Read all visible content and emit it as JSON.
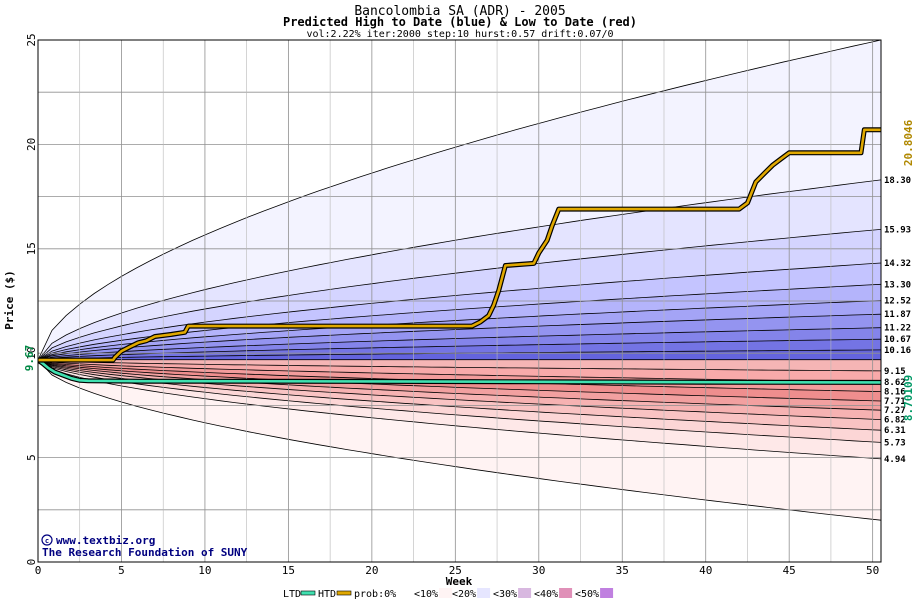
{
  "chart_data": {
    "type": "area",
    "title": "Bancolombia SA (ADR) - 2005",
    "subtitle": "Predicted High to Date (blue) &  Low to Date (red)",
    "params": "vol:2.22% iter:2000 step:10 hurst:0.57 drift:0.07/0",
    "xlabel": "Week",
    "ylabel": "Price ($)",
    "xlim": [
      0,
      50.5
    ],
    "ylim": [
      0,
      25
    ],
    "x_ticks": [
      0,
      5,
      10,
      15,
      20,
      25,
      30,
      35,
      40,
      45,
      50
    ],
    "y_ticks": [
      0,
      5,
      10,
      15,
      20,
      25
    ],
    "grid": true,
    "start_price": 9.67,
    "start_label": "9.67",
    "high_band_ends": [
      25,
      18.3,
      15.93,
      14.32,
      13.3,
      12.52,
      11.87,
      11.22,
      10.67,
      10.16,
      9.67
    ],
    "low_band_ends": [
      9.67,
      9.15,
      8.62,
      8.16,
      7.71,
      7.27,
      6.82,
      6.31,
      5.73,
      4.94,
      2.0
    ],
    "right_labels_high": [
      "18.30",
      "15.93",
      "14.32",
      "13.30",
      "12.52",
      "11.87",
      "11.22",
      "10.67",
      "10.16"
    ],
    "right_labels_low": [
      "9.15",
      "8.62",
      "8.16",
      "7.71",
      "7.27",
      "6.82",
      "6.31",
      "5.73",
      "4.94"
    ],
    "ltd_series": {
      "name": "LTD",
      "color": "#40e0b0",
      "points": [
        [
          0,
          9.67
        ],
        [
          0.3,
          9.5
        ],
        [
          0.6,
          9.3
        ],
        [
          1,
          9.1
        ],
        [
          1.5,
          8.95
        ],
        [
          2,
          8.8
        ],
        [
          2.5,
          8.7
        ],
        [
          3,
          8.68
        ],
        [
          6,
          8.66
        ],
        [
          10,
          8.66
        ],
        [
          20,
          8.65
        ],
        [
          30,
          8.63
        ],
        [
          40,
          8.61
        ],
        [
          50.5,
          8.6
        ]
      ],
      "end_label": "8.70109"
    },
    "htd_series": {
      "name": "HTD",
      "color": "#e0a800",
      "points": [
        [
          0,
          9.67
        ],
        [
          4.5,
          9.67
        ],
        [
          4.6,
          9.8
        ],
        [
          5,
          10.1
        ],
        [
          5.5,
          10.3
        ],
        [
          6,
          10.5
        ],
        [
          6.5,
          10.6
        ],
        [
          7,
          10.8
        ],
        [
          8,
          10.9
        ],
        [
          8.8,
          11.0
        ],
        [
          9,
          11.3
        ],
        [
          15,
          11.3
        ],
        [
          20,
          11.3
        ],
        [
          26,
          11.3
        ],
        [
          26.5,
          11.5
        ],
        [
          27,
          11.8
        ],
        [
          27.3,
          12.3
        ],
        [
          27.6,
          13.0
        ],
        [
          28,
          14.2
        ],
        [
          29.7,
          14.3
        ],
        [
          30,
          14.8
        ],
        [
          30.5,
          15.4
        ],
        [
          30.8,
          16.1
        ],
        [
          31.2,
          16.9
        ],
        [
          35,
          16.9
        ],
        [
          40,
          16.9
        ],
        [
          42,
          16.9
        ],
        [
          42.5,
          17.2
        ],
        [
          43,
          18.2
        ],
        [
          43.5,
          18.6
        ],
        [
          44,
          19.0
        ],
        [
          44.5,
          19.3
        ],
        [
          45,
          19.6
        ],
        [
          49.3,
          19.6
        ],
        [
          49.5,
          20.7
        ],
        [
          50.5,
          20.7
        ]
      ],
      "end_label": "20.8046"
    },
    "legend": [
      "LTD",
      "HTD",
      "prob:0%",
      "<10%",
      "<20%",
      "<30%",
      "<40%",
      "<50%"
    ],
    "legend_colors": [
      "#ffffff",
      "#fff4f4",
      "#e6e6ff",
      "#d8b8e0",
      "#e090b8",
      "#c080e0"
    ],
    "blue_band_colors": [
      "#f3f3ff",
      "#e4e4ff",
      "#d4d4ff",
      "#c4c4ff",
      "#b4b4fb",
      "#a4a4f6",
      "#9494f0",
      "#8484ea",
      "#7474e4",
      "#6464de"
    ],
    "red_band_colors": [
      "#f5b5b5",
      "#f8aaaa",
      "#f39c9c",
      "#ef8e8e",
      "#f2a0a0",
      "#f6b2b2",
      "#f9c3c3",
      "#fcd6d6",
      "#fee8e8",
      "#fff3f3"
    ]
  },
  "watermark": {
    "site": "www.textbiz.org",
    "org": "The Research Foundation of SUNY"
  }
}
